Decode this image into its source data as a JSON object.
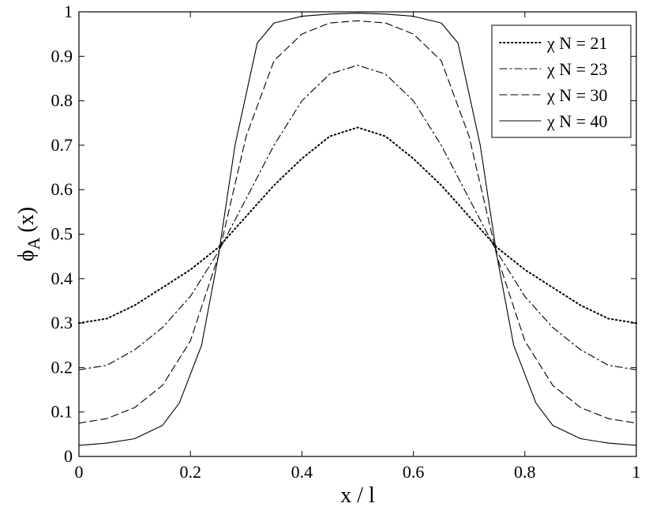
{
  "chart_data": {
    "type": "line",
    "title": "",
    "xlabel": "x / l",
    "ylabel_main": "ϕ",
    "ylabel_sub": "A",
    "ylabel_tail": "(x)",
    "xlim": [
      0,
      1
    ],
    "ylim": [
      0,
      1
    ],
    "xticks": [
      "0",
      "0.2",
      "0.4",
      "0.6",
      "0.8",
      "1"
    ],
    "yticks": [
      "0",
      "0.1",
      "0.2",
      "0.3",
      "0.4",
      "0.5",
      "0.6",
      "0.7",
      "0.8",
      "0.9",
      "1"
    ],
    "grid": false,
    "legend_position": "top-right",
    "series": [
      {
        "name": "χ N = 21",
        "style": "dotted",
        "x": [
          0,
          0.05,
          0.1,
          0.15,
          0.2,
          0.25,
          0.3,
          0.35,
          0.4,
          0.45,
          0.5,
          0.55,
          0.6,
          0.65,
          0.7,
          0.75,
          0.8,
          0.85,
          0.9,
          0.95,
          1
        ],
        "y": [
          0.3,
          0.31,
          0.34,
          0.38,
          0.42,
          0.47,
          0.54,
          0.61,
          0.67,
          0.72,
          0.74,
          0.72,
          0.67,
          0.61,
          0.54,
          0.47,
          0.42,
          0.38,
          0.34,
          0.31,
          0.3
        ]
      },
      {
        "name": "χ N = 23",
        "style": "dashdot",
        "x": [
          0,
          0.05,
          0.1,
          0.15,
          0.2,
          0.25,
          0.3,
          0.35,
          0.4,
          0.45,
          0.5,
          0.55,
          0.6,
          0.65,
          0.7,
          0.75,
          0.8,
          0.85,
          0.9,
          0.95,
          1
        ],
        "y": [
          0.195,
          0.205,
          0.24,
          0.29,
          0.36,
          0.46,
          0.58,
          0.7,
          0.8,
          0.86,
          0.88,
          0.86,
          0.8,
          0.7,
          0.58,
          0.46,
          0.36,
          0.29,
          0.24,
          0.205,
          0.195
        ]
      },
      {
        "name": "χ N = 30",
        "style": "dashed",
        "x": [
          0,
          0.05,
          0.1,
          0.15,
          0.2,
          0.25,
          0.3,
          0.35,
          0.4,
          0.45,
          0.5,
          0.55,
          0.6,
          0.65,
          0.7,
          0.75,
          0.8,
          0.85,
          0.9,
          0.95,
          1
        ],
        "y": [
          0.075,
          0.085,
          0.11,
          0.16,
          0.26,
          0.45,
          0.72,
          0.89,
          0.95,
          0.975,
          0.98,
          0.975,
          0.95,
          0.89,
          0.72,
          0.45,
          0.26,
          0.16,
          0.11,
          0.085,
          0.075
        ]
      },
      {
        "name": "χ N = 40",
        "style": "solid",
        "x": [
          0,
          0.05,
          0.1,
          0.15,
          0.18,
          0.22,
          0.25,
          0.28,
          0.32,
          0.35,
          0.4,
          0.45,
          0.5,
          0.55,
          0.6,
          0.65,
          0.68,
          0.72,
          0.75,
          0.78,
          0.82,
          0.85,
          0.9,
          0.95,
          1
        ],
        "y": [
          0.025,
          0.03,
          0.04,
          0.07,
          0.12,
          0.25,
          0.45,
          0.7,
          0.93,
          0.975,
          0.99,
          0.995,
          0.997,
          0.995,
          0.99,
          0.975,
          0.93,
          0.7,
          0.45,
          0.25,
          0.12,
          0.07,
          0.04,
          0.03,
          0.025
        ]
      }
    ]
  }
}
